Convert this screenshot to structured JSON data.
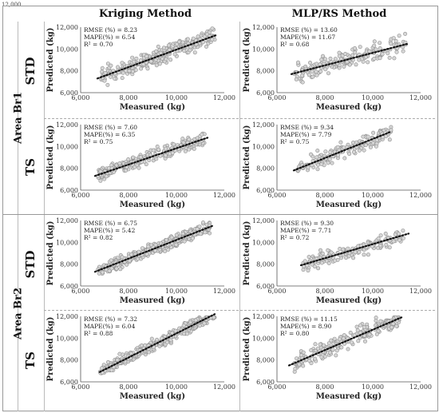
{
  "stray_label": "12,000",
  "headers": {
    "left": "Kriging Method",
    "right": "MLP/RS Method"
  },
  "areas": [
    {
      "label": "Area Br1",
      "rows": [
        "STD",
        "TS"
      ]
    },
    {
      "label": "Area Br2",
      "rows": [
        "STD",
        "TS"
      ]
    }
  ],
  "chart_data": [
    {
      "type": "scatter",
      "id": "br1-std-kriging",
      "area": "Area Br1",
      "row": "STD",
      "method": "Kriging Method",
      "xlabel": "Measured (kg)",
      "ylabel": "Predicted (kg)",
      "xlim": [
        6000,
        12000
      ],
      "ylim": [
        6000,
        12000
      ],
      "xticks": [
        "6,000",
        "8,000",
        "10,000",
        "12,000"
      ],
      "yticks": [
        "6,000",
        "8,000",
        "10,000",
        "12,000"
      ],
      "annotations": [
        "RMSE (%) = 8.23",
        "MAPE(%) = 6.54",
        "R² = 0.70"
      ],
      "trend": {
        "x": [
          6700,
          11700
        ],
        "y": [
          7300,
          11300
        ]
      },
      "points": {
        "n": 300,
        "xrange": [
          6800,
          11600
        ],
        "slope": 0.8,
        "intercept": 1940,
        "noise": 700,
        "seed": 11
      }
    },
    {
      "type": "scatter",
      "id": "br1-std-mlp",
      "area": "Area Br1",
      "row": "STD",
      "method": "MLP/RS Method",
      "xlabel": "Measured (kg)",
      "ylabel": "Predicted (kg)",
      "xlim": [
        6000,
        12000
      ],
      "ylim": [
        6000,
        12000
      ],
      "xticks": [
        "6,000",
        "8,000",
        "10,000",
        "12,000"
      ],
      "yticks": [
        "6,000",
        "8,000",
        "10,000",
        "12,000"
      ],
      "annotations": [
        "RMSE (%) = 13.60",
        "MAPE(%) = 11.67",
        "R² = 0.68"
      ],
      "trend": {
        "x": [
          6600,
          11500
        ],
        "y": [
          7700,
          10500
        ]
      },
      "points": {
        "n": 180,
        "xrange": [
          6700,
          11400
        ],
        "slope": 0.57,
        "intercept": 3940,
        "noise": 900,
        "seed": 23
      }
    },
    {
      "type": "scatter",
      "id": "br1-ts-kriging",
      "area": "Area Br1",
      "row": "TS",
      "method": "Kriging Method",
      "xlabel": "Measured (kg)",
      "ylabel": "Predicted (kg)",
      "xlim": [
        6000,
        12000
      ],
      "ylim": [
        6000,
        12000
      ],
      "xticks": [
        "6,000",
        "8,000",
        "10,000",
        "12,000"
      ],
      "yticks": [
        "6,000",
        "8,000",
        "10,000",
        "12,000"
      ],
      "annotations": [
        "RMSE (%) = 7.60",
        "MAPE(%) = 6.35",
        "R² = 0.75"
      ],
      "trend": {
        "x": [
          6600,
          11300
        ],
        "y": [
          7300,
          10800
        ]
      },
      "points": {
        "n": 260,
        "xrange": [
          6700,
          11200
        ],
        "slope": 0.74,
        "intercept": 2410,
        "noise": 550,
        "seed": 37
      }
    },
    {
      "type": "scatter",
      "id": "br1-ts-mlp",
      "area": "Area Br1",
      "row": "TS",
      "method": "MLP/RS Method",
      "xlabel": "Measured (kg)",
      "ylabel": "Predicted (kg)",
      "xlim": [
        6000,
        12000
      ],
      "ylim": [
        6000,
        12000
      ],
      "xticks": [
        "6,000",
        "8,000",
        "10,000",
        "12,000"
      ],
      "yticks": [
        "6,000",
        "8,000",
        "10,000",
        "12,000"
      ],
      "annotations": [
        "RMSE (%) = 9.34",
        "MAPE(%) = 7.79",
        "R² = 0.75"
      ],
      "trend": {
        "x": [
          6700,
          10700
        ],
        "y": [
          7800,
          11300
        ]
      },
      "points": {
        "n": 160,
        "xrange": [
          6800,
          10800
        ],
        "slope": 0.87,
        "intercept": 1970,
        "noise": 700,
        "seed": 41
      }
    },
    {
      "type": "scatter",
      "id": "br2-std-kriging",
      "area": "Area Br2",
      "row": "STD",
      "method": "Kriging Method",
      "xlabel": "Measured (kg)",
      "ylabel": "Predicted (kg)",
      "xlim": [
        6000,
        12000
      ],
      "ylim": [
        6000,
        12000
      ],
      "xticks": [
        "6,000",
        "8,000",
        "10,000",
        "12,000"
      ],
      "yticks": [
        "6,000",
        "8,000",
        "10,000",
        "12,000"
      ],
      "annotations": [
        "RMSE (%) = 6.75",
        "MAPE(%) = 5.42",
        "R² = 0.82"
      ],
      "trend": {
        "x": [
          6600,
          11500
        ],
        "y": [
          7300,
          11500
        ]
      },
      "points": {
        "n": 340,
        "xrange": [
          6700,
          11400
        ],
        "slope": 0.86,
        "intercept": 1620,
        "noise": 550,
        "seed": 53
      }
    },
    {
      "type": "scatter",
      "id": "br2-std-mlp",
      "area": "Area Br2",
      "row": "STD",
      "method": "MLP/RS Method",
      "xlabel": "Measured (kg)",
      "ylabel": "Predicted (kg)",
      "xlim": [
        6000,
        12000
      ],
      "ylim": [
        6000,
        12000
      ],
      "xticks": [
        "6,000",
        "8,000",
        "10,000",
        "12,000"
      ],
      "yticks": [
        "6,000",
        "8,000",
        "10,000",
        "12,000"
      ],
      "annotations": [
        "RMSE (%) = 9.30",
        "MAPE(%) = 7.71",
        "R² = 0.72"
      ],
      "trend": {
        "x": [
          7000,
          11500
        ],
        "y": [
          7900,
          10800
        ]
      },
      "points": {
        "n": 170,
        "xrange": [
          7100,
          11300
        ],
        "slope": 0.64,
        "intercept": 3400,
        "noise": 650,
        "seed": 67
      }
    },
    {
      "type": "scatter",
      "id": "br2-ts-kriging",
      "area": "Area Br2",
      "row": "TS",
      "method": "Kriging Method",
      "xlabel": "Measured (kg)",
      "ylabel": "Predicted (kg)",
      "xlim": [
        6000,
        12000
      ],
      "ylim": [
        6000,
        12000
      ],
      "xticks": [
        "6,000",
        "8,000",
        "10,000",
        "12,000"
      ],
      "yticks": [
        "6,000",
        "8,000",
        "10,000",
        "12,000"
      ],
      "annotations": [
        "RMSE (%) = 7.32",
        "MAPE(%) = 6.04",
        "R² = 0.88"
      ],
      "trend": {
        "x": [
          6800,
          11600
        ],
        "y": [
          6900,
          12200
        ]
      },
      "points": {
        "n": 360,
        "xrange": [
          6800,
          11600
        ],
        "slope": 1.1,
        "intercept": -580,
        "noise": 500,
        "seed": 79
      }
    },
    {
      "type": "scatter",
      "id": "br2-ts-mlp",
      "area": "Area Br2",
      "row": "TS",
      "method": "MLP/RS Method",
      "xlabel": "Measured (kg)",
      "ylabel": "Predicted (kg)",
      "xlim": [
        6000,
        12000
      ],
      "ylim": [
        6000,
        12000
      ],
      "xticks": [
        "6,000",
        "8,000",
        "10,000",
        "12,000"
      ],
      "yticks": [
        "6,000",
        "8,000",
        "10,000",
        "12,000"
      ],
      "annotations": [
        "RMSE (%) = 11.15",
        "MAPE(%) = 8.90",
        "R² = 0.80"
      ],
      "trend": {
        "x": [
          6500,
          11200
        ],
        "y": [
          7500,
          11900
        ]
      },
      "points": {
        "n": 220,
        "xrange": [
          6700,
          11100
        ],
        "slope": 0.94,
        "intercept": 1400,
        "noise": 750,
        "seed": 97
      }
    }
  ]
}
